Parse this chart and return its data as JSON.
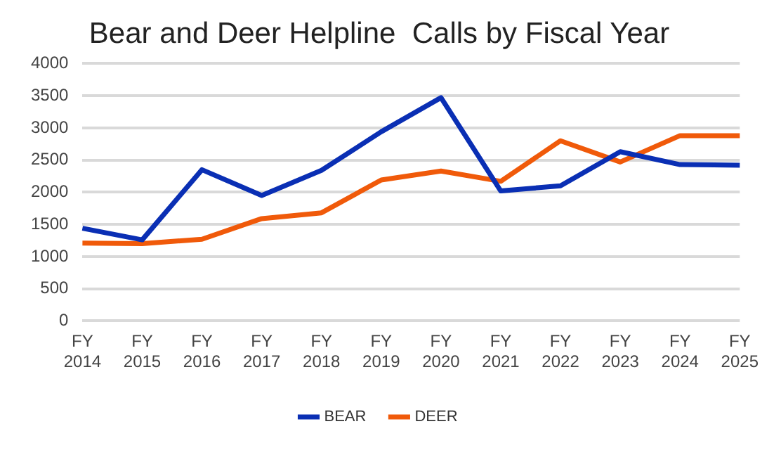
{
  "chart_data": {
    "type": "line",
    "title": "Bear and Deer Helpline  Calls by Fiscal Year",
    "categories": [
      "FY 2014",
      "FY 2015",
      "FY 2016",
      "FY 2017",
      "FY 2018",
      "FY 2019",
      "FY 2020",
      "FY 2021",
      "FY 2022",
      "FY 2023",
      "FY 2024",
      "FY 2025"
    ],
    "series": [
      {
        "name": "BEAR",
        "color": "#0a2fb4",
        "values": [
          1440,
          1260,
          2350,
          1950,
          2340,
          2940,
          3470,
          2020,
          2100,
          2630,
          2430,
          2420
        ]
      },
      {
        "name": "DEER",
        "color": "#f05a0a",
        "values": [
          1210,
          1200,
          1270,
          1590,
          1680,
          2190,
          2330,
          2170,
          2800,
          2470,
          2880,
          2880
        ]
      }
    ],
    "ylim": [
      0,
      4000
    ],
    "yticks": [
      0,
      500,
      1000,
      1500,
      2000,
      2500,
      3000,
      3500,
      4000
    ],
    "grid": "y",
    "legend": "bottom",
    "marker": "none",
    "line_style": "solid"
  }
}
